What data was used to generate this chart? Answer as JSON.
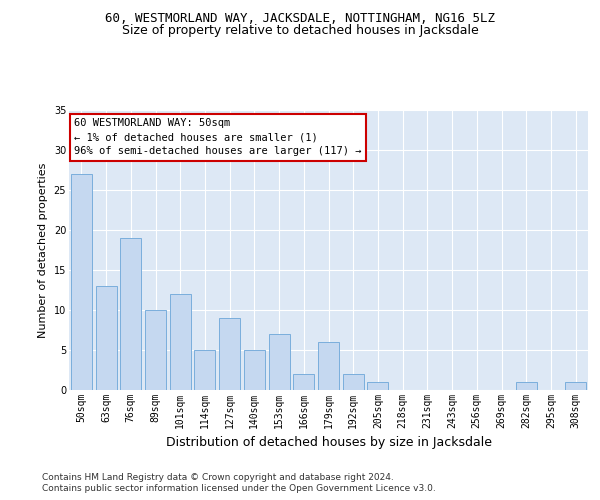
{
  "title": "60, WESTMORLAND WAY, JACKSDALE, NOTTINGHAM, NG16 5LZ",
  "subtitle": "Size of property relative to detached houses in Jacksdale",
  "xlabel": "Distribution of detached houses by size in Jacksdale",
  "ylabel": "Number of detached properties",
  "categories": [
    "50sqm",
    "63sqm",
    "76sqm",
    "89sqm",
    "101sqm",
    "114sqm",
    "127sqm",
    "140sqm",
    "153sqm",
    "166sqm",
    "179sqm",
    "192sqm",
    "205sqm",
    "218sqm",
    "231sqm",
    "243sqm",
    "256sqm",
    "269sqm",
    "282sqm",
    "295sqm",
    "308sqm"
  ],
  "values": [
    27,
    13,
    19,
    10,
    12,
    5,
    9,
    5,
    7,
    2,
    6,
    2,
    1,
    0,
    0,
    0,
    0,
    0,
    1,
    0,
    1
  ],
  "bar_color": "#c5d8f0",
  "bar_edge_color": "#7aaedc",
  "annotation_box_text": "60 WESTMORLAND WAY: 50sqm\n← 1% of detached houses are smaller (1)\n96% of semi-detached houses are larger (117) →",
  "annotation_box_facecolor": "#ffffff",
  "annotation_box_edgecolor": "#cc0000",
  "ylim": [
    0,
    35
  ],
  "yticks": [
    0,
    5,
    10,
    15,
    20,
    25,
    30,
    35
  ],
  "footer": "Contains HM Land Registry data © Crown copyright and database right 2024.\nContains public sector information licensed under the Open Government Licence v3.0.",
  "fig_bg_color": "#ffffff",
  "plot_bg_color": "#dde8f5",
  "title_fontsize": 9,
  "subtitle_fontsize": 9,
  "annotation_fontsize": 7.5,
  "ylabel_fontsize": 8,
  "xlabel_fontsize": 9,
  "footer_fontsize": 6.5,
  "tick_fontsize": 7
}
